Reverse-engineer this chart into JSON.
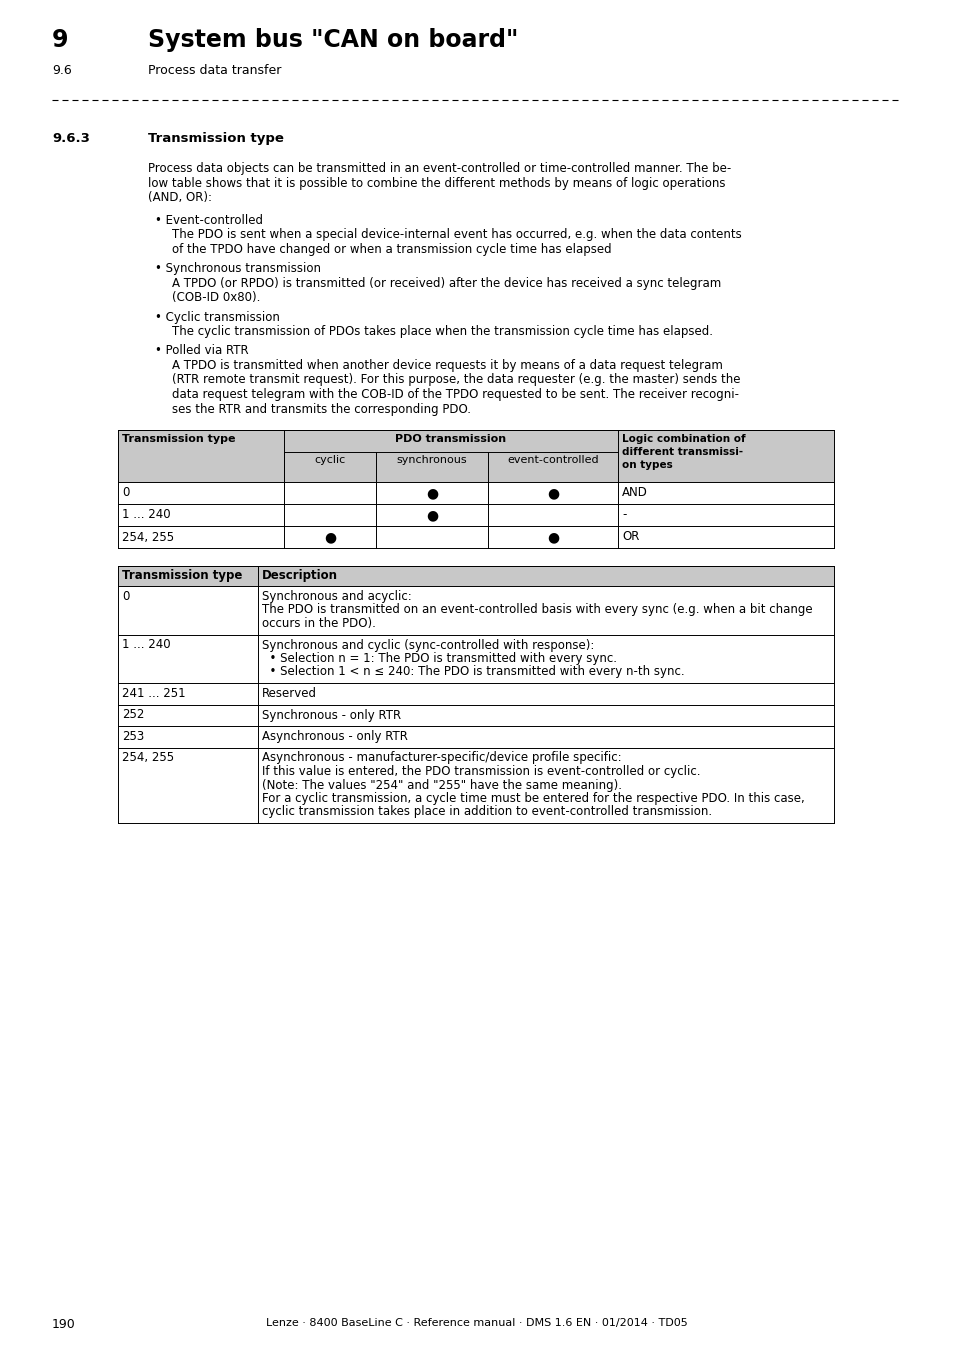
{
  "page_number": "190",
  "footer_text": "Lenze · 8400 BaseLine C · Reference manual · DMS 1.6 EN · 01/2014 · TD05",
  "header_chapter": "9",
  "header_title": "System bus \"CAN on board\"",
  "header_sub": "9.6",
  "header_sub_title": "Process data transfer",
  "section_num": "9.6.3",
  "section_title": "Transmission type",
  "body_text_lines": [
    "Process data objects can be transmitted in an event-controlled or time-controlled manner. The be-",
    "low table shows that it is possible to combine the different methods by means of logic operations",
    "(AND, OR):"
  ],
  "bullet_items": [
    {
      "title": "Event-controlled",
      "text_lines": [
        "The PDO is sent when a special device-internal event has occurred, e.g. when the data contents",
        "of the TPDO have changed or when a transmission cycle time has elapsed"
      ]
    },
    {
      "title": "Synchronous transmission",
      "text_lines": [
        "A TPDO (or RPDO) is transmitted (or received) after the device has received a sync telegram",
        "(COB-ID 0x80)."
      ]
    },
    {
      "title": "Cyclic transmission",
      "text_lines": [
        "The cyclic transmission of PDOs takes place when the transmission cycle time has elapsed."
      ]
    },
    {
      "title": "Polled via RTR",
      "text_lines": [
        "A TPDO is transmitted when another device requests it by means of a data request telegram",
        "(RTR remote transmit request). For this purpose, the data requester (e.g. the master) sends the",
        "data request telegram with the COB-ID of the TPDO requested to be sent. The receiver recogni-",
        "ses the RTR and transmits the corresponding PDO."
      ]
    }
  ],
  "table1_header_bg": "#c8c8c8",
  "table1_rows": [
    {
      "col0": "0",
      "col1": "",
      "col2": "●",
      "col3": "●",
      "col4": "AND"
    },
    {
      "col0": "1 ... 240",
      "col1": "",
      "col2": "●",
      "col3": "",
      "col4": "-"
    },
    {
      "col0": "254, 255",
      "col1": "●",
      "col2": "",
      "col3": "●",
      "col4": "OR"
    }
  ],
  "table2_header_bg": "#c8c8c8",
  "table2_rows": [
    {
      "type": "0",
      "desc": [
        {
          "text": "Synchronous and acyclic:",
          "bold": false
        },
        {
          "text": "The PDO is transmitted on an event-controlled basis with every sync (e.g. when a bit change",
          "bold": false
        },
        {
          "text": "occurs in the PDO).",
          "bold": false
        }
      ]
    },
    {
      "type": "1 ... 240",
      "desc": [
        {
          "text": "Synchronous and cyclic (sync-controlled with response):",
          "bold": false
        },
        {
          "text": "  • Selection n = 1: The PDO is transmitted with every sync.",
          "bold": false
        },
        {
          "text": "  • Selection 1 < n ≤ 240: The PDO is transmitted with every n-th sync.",
          "bold": false
        }
      ]
    },
    {
      "type": "241 ... 251",
      "desc": [
        {
          "text": "Reserved",
          "bold": false
        }
      ]
    },
    {
      "type": "252",
      "desc": [
        {
          "text": "Synchronous - only RTR",
          "bold": false
        }
      ]
    },
    {
      "type": "253",
      "desc": [
        {
          "text": "Asynchronous - only RTR",
          "bold": false
        }
      ]
    },
    {
      "type": "254, 255",
      "desc": [
        {
          "text": "Asynchronous - manufacturer-specific/device profile specific:",
          "bold": false
        },
        {
          "text": "If this value is entered, the PDO transmission is event-controlled or cyclic.",
          "bold": false
        },
        {
          "text": "(Note: The values \"254\" and \"255\" have the same meaning).",
          "bold": false
        },
        {
          "text": "For a cyclic transmission, a cycle time must be entered for the respective PDO. In this case,",
          "bold": false
        },
        {
          "text": "cyclic transmission takes place in addition to event-controlled transmission.",
          "bold": false
        }
      ]
    }
  ]
}
